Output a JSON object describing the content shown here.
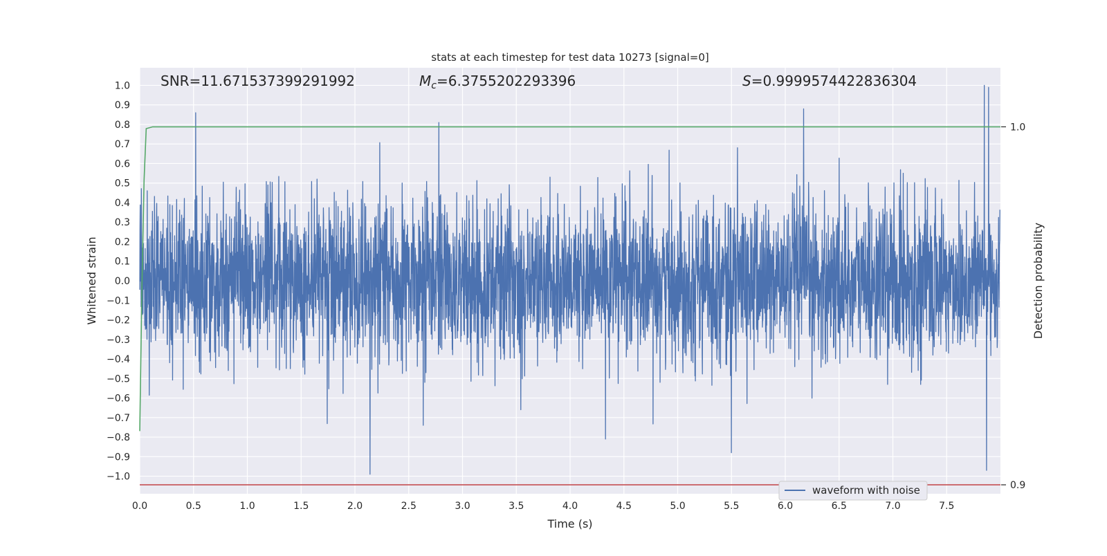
{
  "chart_data": {
    "type": "line",
    "title": "stats at each timestep for test data 10273 [signal=0]",
    "xlabel": "Time (s)",
    "ylabel": "Whitened strain",
    "y2label": "Detection probability",
    "xlim": [
      0.0,
      8.0
    ],
    "ylim": [
      -1.09,
      1.09
    ],
    "y2lim": [
      0.8975,
      1.0165
    ],
    "x_ticks": [
      0.0,
      0.5,
      1.0,
      1.5,
      2.0,
      2.5,
      3.0,
      3.5,
      4.0,
      4.5,
      5.0,
      5.5,
      6.0,
      6.5,
      7.0,
      7.5
    ],
    "x_tick_labels": [
      "0.0",
      "0.5",
      "1.0",
      "1.5",
      "2.0",
      "2.5",
      "3.0",
      "3.5",
      "4.0",
      "4.5",
      "5.0",
      "5.5",
      "6.0",
      "6.5",
      "7.0",
      "7.5"
    ],
    "y_ticks": [
      1.0,
      0.9,
      0.8,
      0.7,
      0.6,
      0.5,
      0.4,
      0.3,
      0.2,
      0.1,
      0.0,
      -0.1,
      -0.2,
      -0.3,
      -0.4,
      -0.5,
      -0.6,
      -0.7,
      -0.8,
      -0.9,
      -1.0
    ],
    "y_tick_labels": [
      "1.0",
      "0.9",
      "0.8",
      "0.7",
      "0.6",
      "0.5",
      "0.4",
      "0.3",
      "0.2",
      "0.1",
      "0.0",
      "−0.1",
      "−0.2",
      "−0.3",
      "−0.4",
      "−0.5",
      "−0.6",
      "−0.7",
      "−0.8",
      "−0.9",
      "−1.0"
    ],
    "y2_ticks": [
      1.0,
      0.9
    ],
    "y2_tick_labels": [
      "1.0",
      "0.9"
    ],
    "grid": true,
    "legend_position": "lower-right",
    "annotations": {
      "snr": "SNR=11.671537399291992",
      "mc_symbol": "M",
      "mc_sub": "c",
      "mc_value": "=6.3755202293396",
      "s_symbol": "S",
      "s_value": "=0.9999574422836304"
    },
    "series": [
      {
        "name": "waveform with noise",
        "color": "#4c72b0",
        "axis": "left",
        "description_values": "dense noise, mostly within ±0.5 whitened strain",
        "peaks": [
          {
            "x": 0.52,
            "y": 0.86
          },
          {
            "x": 2.14,
            "y": -0.99
          },
          {
            "x": 2.78,
            "y": 0.81
          },
          {
            "x": 6.17,
            "y": 0.88
          },
          {
            "x": 7.85,
            "y": 1.0
          },
          {
            "x": 7.87,
            "y": -0.97
          },
          {
            "x": 7.89,
            "y": 0.99
          },
          {
            "x": 5.5,
            "y": -0.88
          },
          {
            "x": 4.33,
            "y": -0.81
          }
        ]
      },
      {
        "color": "#55a868",
        "axis": "right",
        "x": [
          0.0,
          0.02,
          0.04,
          0.06,
          0.12,
          0.3,
          8.0
        ],
        "values": [
          0.915,
          0.955,
          0.985,
          0.9995,
          1.0,
          1.0,
          1.0
        ]
      },
      {
        "color": "#c44e52",
        "axis": "right",
        "x": [
          0.0,
          8.0
        ],
        "values": [
          0.9,
          0.9
        ]
      }
    ]
  }
}
